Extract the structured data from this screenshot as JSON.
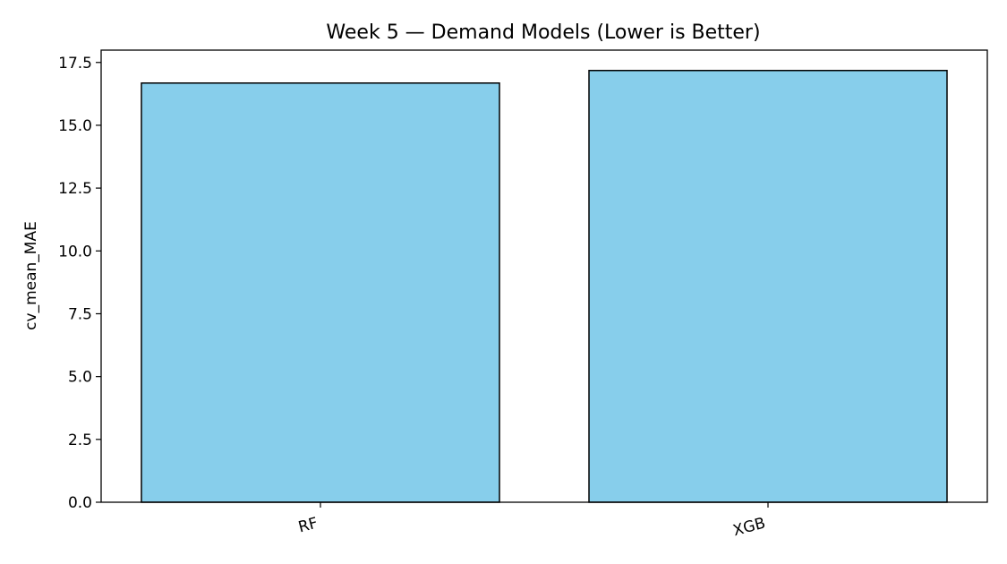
{
  "chart_data": {
    "type": "bar",
    "title": "Week 5 — Demand Models (Lower is Better)",
    "xlabel": "",
    "ylabel": "cv_mean_MAE",
    "categories": [
      "RF",
      "XGB"
    ],
    "values": [
      16.68,
      17.18
    ],
    "ylim": [
      0,
      17.99
    ],
    "yticks": [
      0.0,
      2.5,
      5.0,
      7.5,
      10.0,
      12.5,
      15.0,
      17.5
    ],
    "ytick_labels": [
      "0.0",
      "2.5",
      "5.0",
      "7.5",
      "10.0",
      "12.5",
      "15.0",
      "17.5"
    ],
    "grid": false,
    "legend": "none",
    "colors": {
      "bar_fill": "#87ceeb",
      "bar_edge": "#000000",
      "axis": "#000000"
    }
  }
}
